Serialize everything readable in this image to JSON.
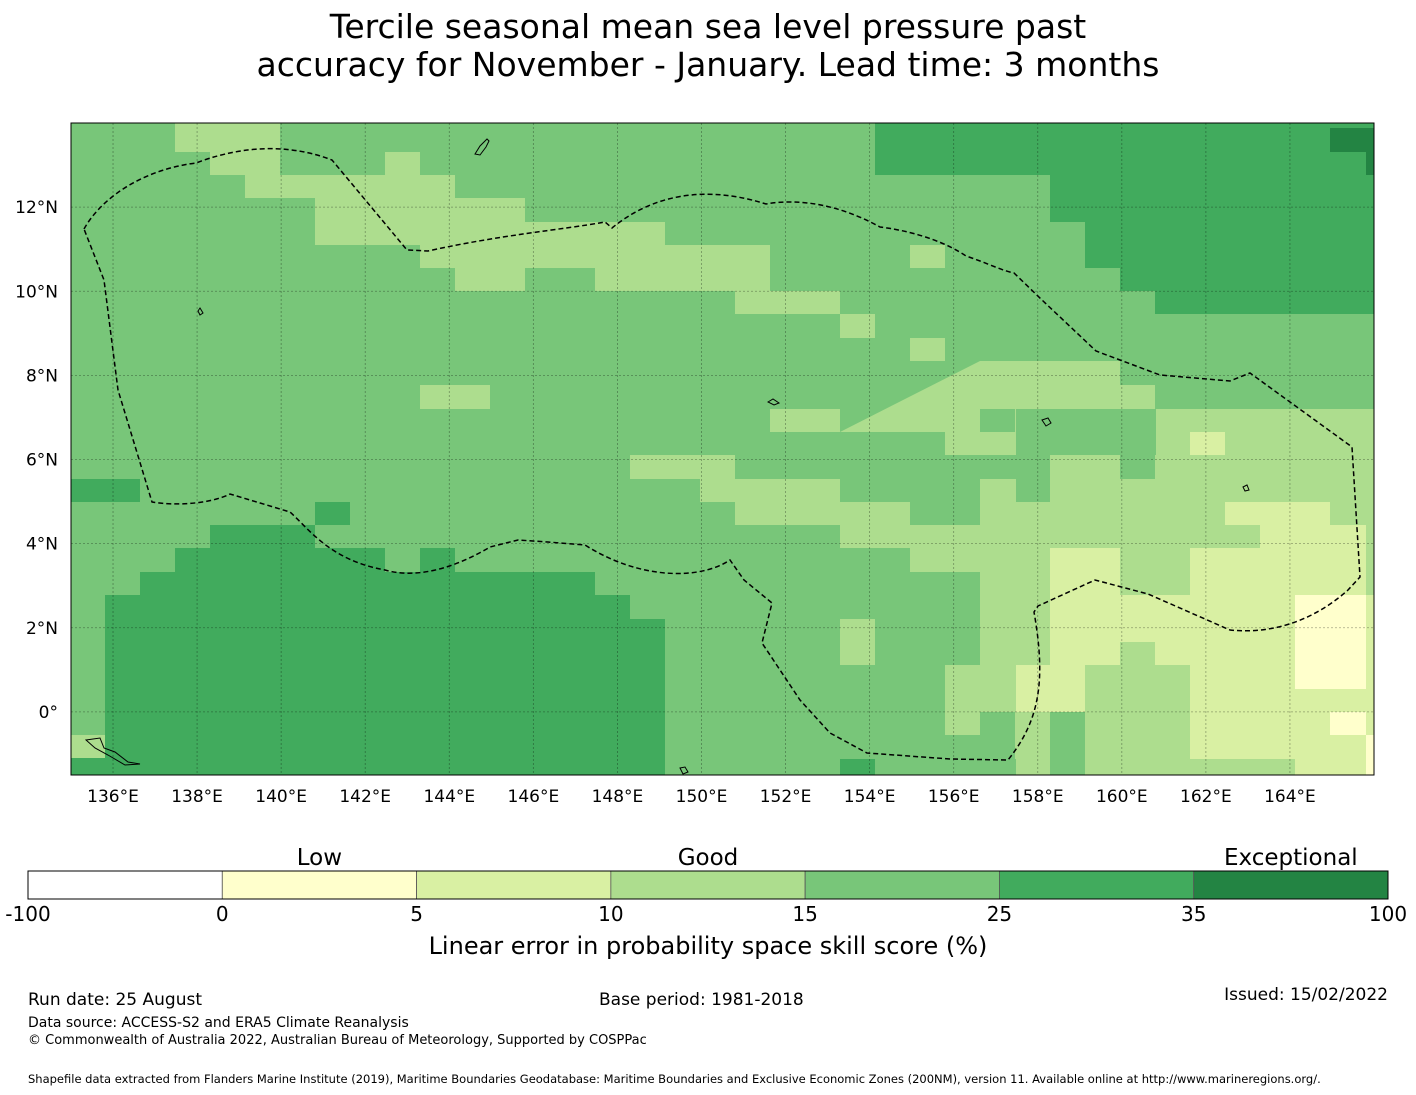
{
  "title": {
    "line1": "Tercile seasonal mean sea level pressure past",
    "line2": "accuracy for November - January. Lead time: 3 months"
  },
  "map": {
    "lon_range": [
      135,
      166
    ],
    "lat_range": [
      -1.5,
      14
    ],
    "lon_ticks": [
      "136°E",
      "138°E",
      "140°E",
      "142°E",
      "144°E",
      "146°E",
      "148°E",
      "150°E",
      "152°E",
      "154°E",
      "156°E",
      "158°E",
      "160°E",
      "162°E",
      "164°E"
    ],
    "lat_ticks": [
      "12°N",
      "10°N",
      "8°N",
      "6°N",
      "4°N",
      "2°N",
      "0°"
    ],
    "grid": true,
    "base_category_color": "#78c679"
  },
  "legend": {
    "category_labels": [
      "Low",
      "Good",
      "Exceptional"
    ],
    "boundaries": [
      "-100",
      "0",
      "5",
      "10",
      "15",
      "25",
      "35",
      "100"
    ],
    "colors": [
      "#ffffff",
      "#ffffcc",
      "#d9f0a3",
      "#addd8e",
      "#78c679",
      "#41ab5d",
      "#238443"
    ],
    "xlabel": "Linear error in probability space skill score (%)"
  },
  "footer": {
    "run_date": "Run date: 25 August",
    "base_period": "Base period: 1981-2018",
    "issued": "Issued: 15/02/2022",
    "data_source": "Data source: ACCESS-S2 and ERA5 Climate Reanalysis",
    "copyright": "© Commonwealth of Australia 2022, Australian Bureau of Meteorology, Supported by COSPPac",
    "shapefile": "Shapefile data extracted from Flanders Marine Institute (2019), Maritime Boundaries Geodatabase: Maritime Boundaries and Exclusive Economic Zones (200NM), version 11. Available online at http://www.marineregions.org/."
  }
}
